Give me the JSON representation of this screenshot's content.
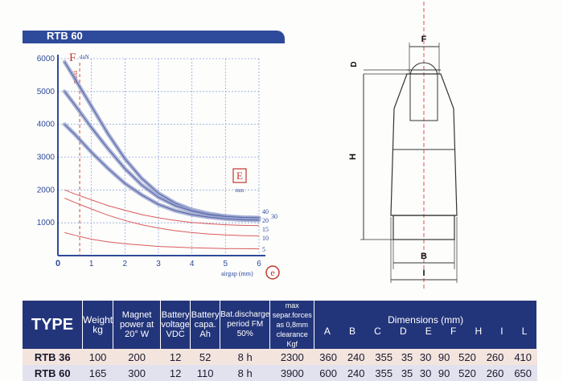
{
  "title": "RTB 60",
  "chart_data": {
    "type": "line",
    "force_label": "F",
    "force_unit": "daN",
    "maxi_label": "maxi",
    "e_label": "E",
    "e_unit": "mm",
    "x_axis_label": "airgap (mm)",
    "x_axis_symbol": "e",
    "x_ticks": [
      "0",
      "1",
      "2",
      "3",
      "4",
      "5",
      "6"
    ],
    "y_ticks": [
      "1000",
      "2000",
      "3000",
      "4000",
      "5000",
      "6000"
    ],
    "xlim": [
      0,
      6
    ],
    "ylim": [
      0,
      6000
    ],
    "series": [
      {
        "name": "40",
        "x": [
          0.2,
          0.5,
          1,
          1.5,
          2,
          2.5,
          3,
          3.5,
          4,
          4.5,
          5,
          5.5,
          6.0
        ],
        "y": [
          5900,
          5400,
          4550,
          3700,
          2950,
          2350,
          1900,
          1600,
          1400,
          1280,
          1200,
          1160,
          1150
        ]
      },
      {
        "name": "30",
        "x": [
          0.2,
          0.5,
          1,
          1.5,
          2,
          2.5,
          3,
          3.5,
          4,
          4.5,
          5,
          5.5,
          6.0
        ],
        "y": [
          5000,
          4600,
          3900,
          3250,
          2650,
          2150,
          1780,
          1520,
          1360,
          1250,
          1190,
          1160,
          1150
        ]
      },
      {
        "name": "20",
        "x": [
          0.2,
          0.5,
          1,
          1.5,
          2,
          2.5,
          3,
          3.5,
          4,
          4.5,
          5,
          5.5,
          6.0
        ],
        "y": [
          4000,
          3700,
          3150,
          2650,
          2200,
          1850,
          1560,
          1370,
          1250,
          1170,
          1120,
          1090,
          1080
        ]
      },
      {
        "name": "15",
        "x": [
          0.2,
          0.5,
          1,
          1.5,
          2,
          2.5,
          3,
          3.5,
          4,
          4.5,
          5,
          5.5,
          6.0
        ],
        "y": [
          2000,
          1880,
          1700,
          1520,
          1380,
          1250,
          1150,
          1070,
          1010,
          970,
          940,
          920,
          910
        ]
      },
      {
        "name": "10",
        "x": [
          0.2,
          0.5,
          1,
          1.5,
          2,
          2.5,
          3,
          3.5,
          4,
          4.5,
          5,
          5.5,
          6.0
        ],
        "y": [
          1750,
          1620,
          1420,
          1230,
          1070,
          940,
          840,
          760,
          700,
          660,
          630,
          610,
          600
        ]
      },
      {
        "name": "5",
        "x": [
          0.2,
          0.5,
          1,
          1.5,
          2,
          2.5,
          3,
          3.5,
          4,
          4.5,
          5,
          5.5,
          6.0
        ],
        "y": [
          700,
          620,
          500,
          420,
          360,
          320,
          280,
          260,
          240,
          225,
          215,
          210,
          205
        ]
      }
    ],
    "series_labels": [
      "40",
      "20",
      "15",
      "10",
      "5",
      "30"
    ]
  },
  "drawing": {
    "labels": [
      "F",
      "D",
      "H",
      "B",
      "I"
    ]
  },
  "table": {
    "type_label": "TYPE",
    "headers": [
      "Weight kg",
      "Magnet power at 20° W",
      "Battery voltage VDC",
      "Battery capa. Ah",
      "Bat.discharge period FM 50%",
      "max separ.forces as 0,8mm clearance Kgf"
    ],
    "dimensions_label": "Dimensions (mm)",
    "dim_cols": [
      "A",
      "B",
      "C",
      "D",
      "E",
      "F",
      "H",
      "I",
      "L"
    ],
    "rows": [
      {
        "type": "RTB 36",
        "cells": [
          "100",
          "200",
          "12",
          "52",
          "8 h",
          "2300",
          "360",
          "240",
          "355",
          "35",
          "30",
          "90",
          "520",
          "260",
          "410"
        ]
      },
      {
        "type": "RTB 60",
        "cells": [
          "165",
          "300",
          "12",
          "110",
          "8 h",
          "3900",
          "600",
          "240",
          "355",
          "35",
          "30",
          "90",
          "520",
          "260",
          "650"
        ]
      }
    ]
  }
}
